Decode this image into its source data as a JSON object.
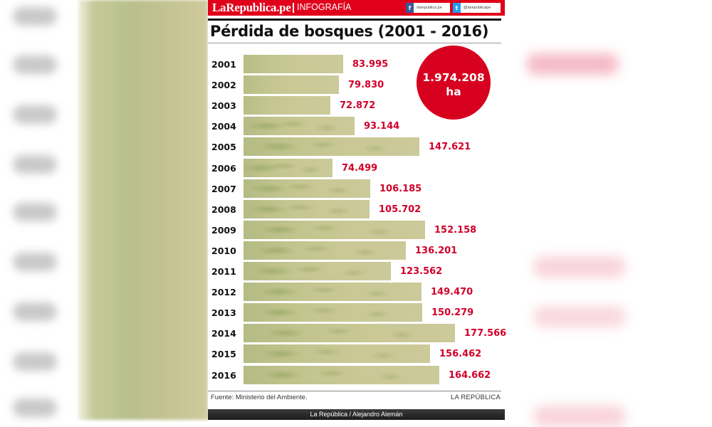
{
  "header": {
    "logo": "LaRepublica.pe",
    "section": "INFOGRAFÍA",
    "facebook": {
      "icon": "facebook-icon",
      "glyph": "f",
      "handle": "/larepublica.pe",
      "color": "#3b5998"
    },
    "twitter": {
      "icon": "twitter-icon",
      "glyph": "t",
      "handle": "@larepublicape",
      "color": "#1da1f2"
    }
  },
  "colors": {
    "brand_red": "#e0001b",
    "value_red": "#d0002a",
    "bar": "#c9c795",
    "circle": "#d8001f"
  },
  "total": {
    "value": "1.974.208",
    "unit": "ha"
  },
  "source": "Fuente: Ministerio del Ambiente.",
  "brand_footer": "LA REPÚBLICA",
  "credit": "La República / Alejandro Alemán",
  "chart_data": {
    "type": "bar",
    "orientation": "horizontal",
    "title": "Pérdida de bosques (2001 - 2016)",
    "xlabel": "",
    "ylabel": "",
    "unit": "ha",
    "categories": [
      "2001",
      "2002",
      "2003",
      "2004",
      "2005",
      "2006",
      "2007",
      "2008",
      "2009",
      "2010",
      "2011",
      "2012",
      "2013",
      "2014",
      "2015",
      "2016"
    ],
    "values": [
      83995,
      79830,
      72872,
      93144,
      147621,
      74499,
      106185,
      105702,
      152158,
      136201,
      123562,
      149470,
      150279,
      177566,
      156462,
      164662
    ],
    "labels": [
      "83.995",
      "79.830",
      "72.872",
      "93.144",
      "147.621",
      "74.499",
      "106.185",
      "105.702",
      "152.158",
      "136.201",
      "123.562",
      "149.470",
      "150.279",
      "177.566",
      "156.462",
      "164.662"
    ],
    "annotation": "1.974.208 ha",
    "grid": false,
    "legend": null
  }
}
